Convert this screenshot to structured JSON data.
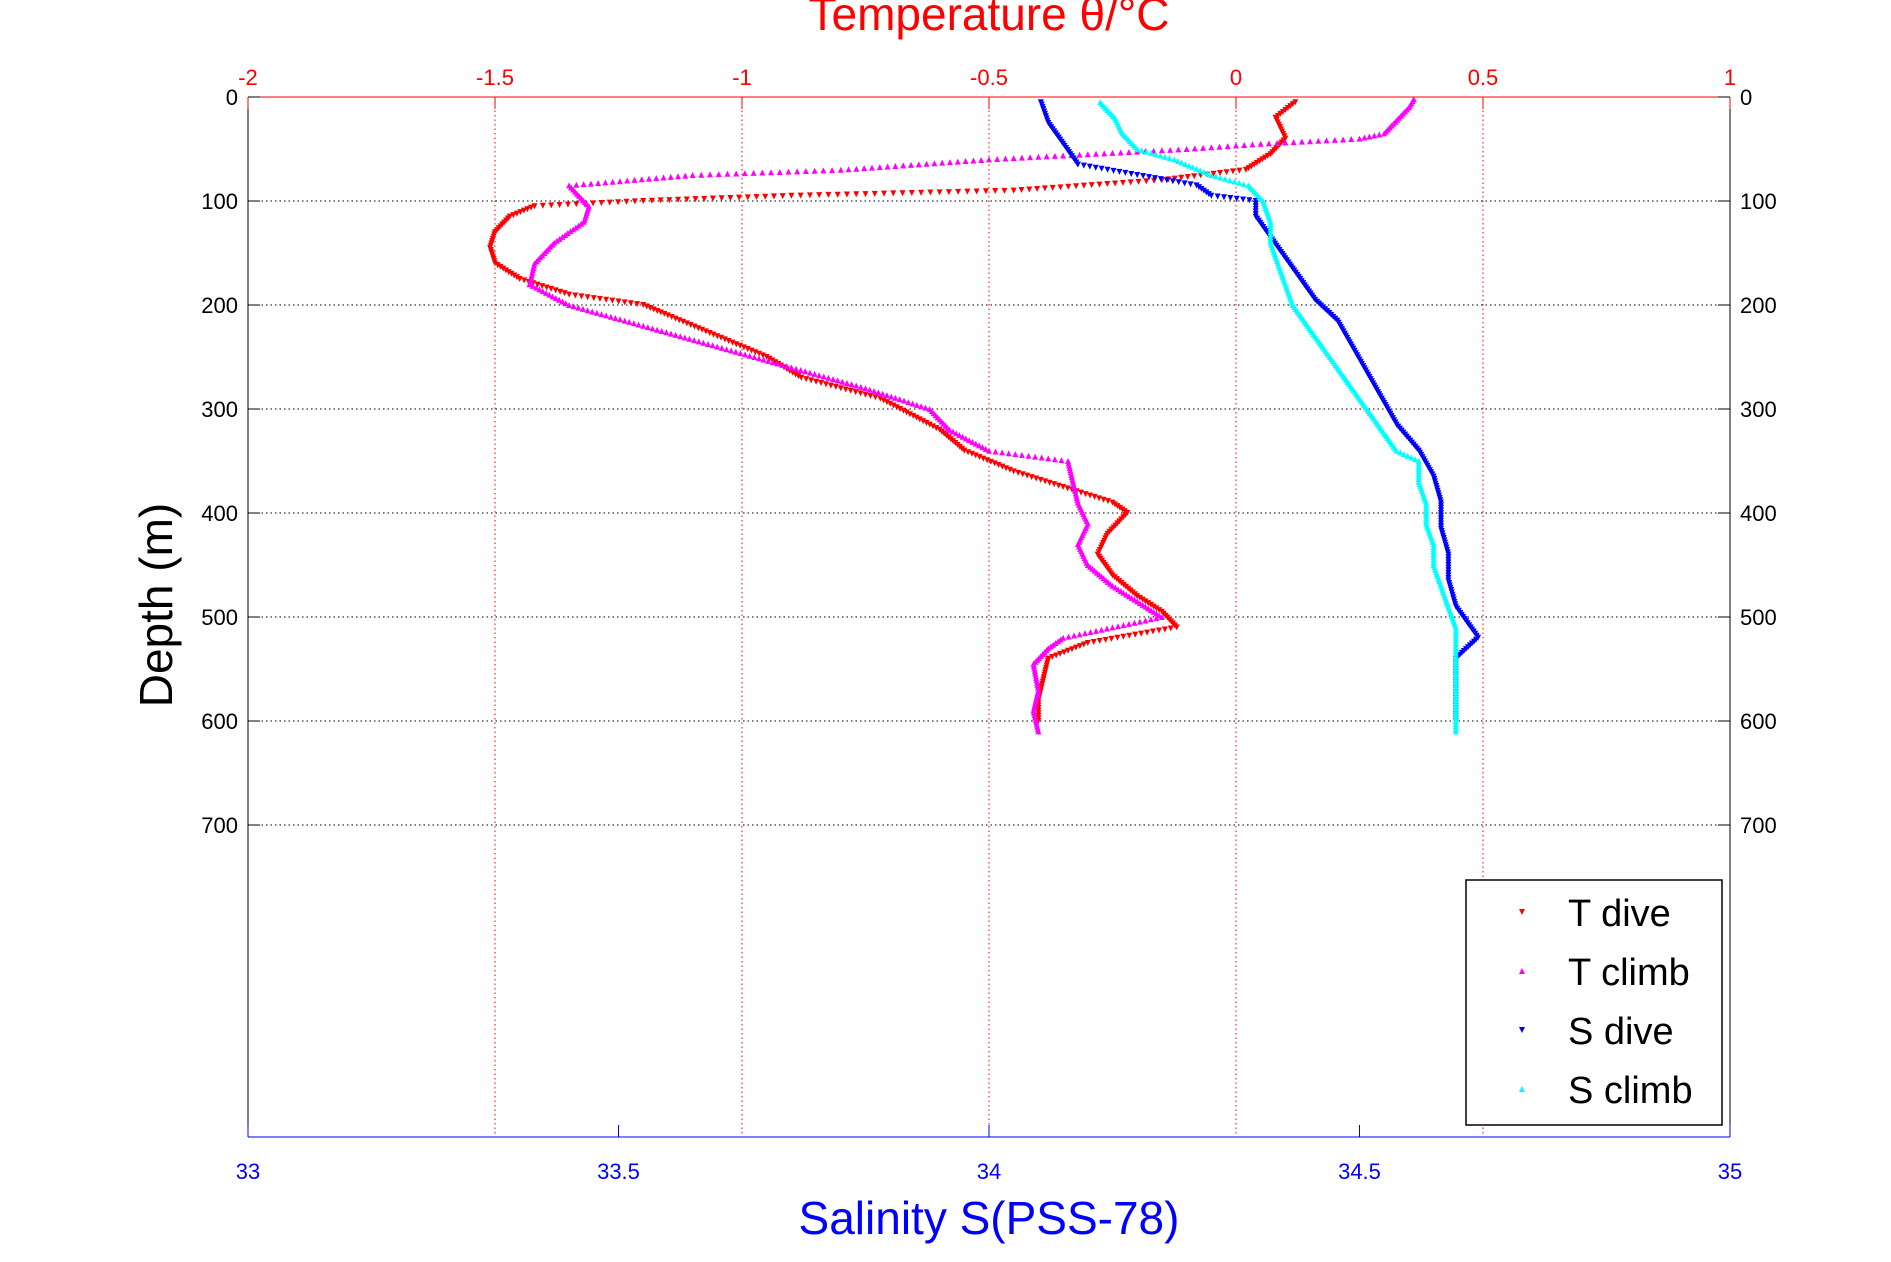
{
  "chart_data": {
    "type": "scatter",
    "title": "Temperature θ/°C",
    "xlabel": "Salinity S(PSS-78)",
    "ylabel": "Depth (m)",
    "x_top": {
      "label": "Temperature θ/°C",
      "lim": [
        -2,
        1
      ],
      "ticks": [
        "-2",
        "-1.5",
        "-1",
        "-0.5",
        "0",
        "0.5",
        "1"
      ],
      "color": "#ff0000"
    },
    "x_bottom": {
      "label": "Salinity S(PSS-78)",
      "lim": [
        33,
        35
      ],
      "ticks": [
        "33",
        "33.5",
        "34",
        "34.5",
        "35"
      ],
      "color": "#0000ff"
    },
    "y": {
      "lim": [
        0,
        1000
      ],
      "reversed": true,
      "ticks": [
        "0",
        "100",
        "200",
        "300",
        "400",
        "500",
        "600",
        "700"
      ]
    },
    "grid": true,
    "legend_position": "bottom-right",
    "series": [
      {
        "name": "T dive",
        "axis": "temperature",
        "color": "#ff0000",
        "marker": "triangle-down",
        "points": [
          [
            0.12,
            5
          ],
          [
            0.08,
            20
          ],
          [
            0.1,
            40
          ],
          [
            0.07,
            55
          ],
          [
            0.02,
            70
          ],
          [
            -0.15,
            80
          ],
          [
            -0.45,
            90
          ],
          [
            -0.9,
            95
          ],
          [
            -1.2,
            100
          ],
          [
            -1.42,
            105
          ],
          [
            -1.47,
            115
          ],
          [
            -1.5,
            130
          ],
          [
            -1.51,
            145
          ],
          [
            -1.5,
            160
          ],
          [
            -1.45,
            175
          ],
          [
            -1.35,
            190
          ],
          [
            -1.2,
            200
          ],
          [
            -1.15,
            210
          ],
          [
            -1.05,
            230
          ],
          [
            -0.95,
            250
          ],
          [
            -0.88,
            270
          ],
          [
            -0.72,
            290
          ],
          [
            -0.68,
            300
          ],
          [
            -0.6,
            320
          ],
          [
            -0.55,
            340
          ],
          [
            -0.45,
            360
          ],
          [
            -0.35,
            375
          ],
          [
            -0.25,
            390
          ],
          [
            -0.22,
            400
          ],
          [
            -0.26,
            420
          ],
          [
            -0.28,
            440
          ],
          [
            -0.25,
            460
          ],
          [
            -0.2,
            480
          ],
          [
            -0.15,
            495
          ],
          [
            -0.12,
            510
          ],
          [
            -0.18,
            515
          ],
          [
            -0.3,
            525
          ],
          [
            -0.38,
            540
          ],
          [
            -0.39,
            560
          ],
          [
            -0.4,
            580
          ],
          [
            -0.4,
            600
          ]
        ]
      },
      {
        "name": "T climb",
        "axis": "temperature",
        "color": "#ff00ff",
        "marker": "triangle-up",
        "points": [
          [
            -0.4,
            610
          ],
          [
            -0.41,
            590
          ],
          [
            -0.4,
            570
          ],
          [
            -0.41,
            545
          ],
          [
            -0.38,
            530
          ],
          [
            -0.35,
            520
          ],
          [
            -0.15,
            500
          ],
          [
            -0.2,
            485
          ],
          [
            -0.25,
            470
          ],
          [
            -0.3,
            450
          ],
          [
            -0.32,
            430
          ],
          [
            -0.3,
            410
          ],
          [
            -0.32,
            390
          ],
          [
            -0.33,
            370
          ],
          [
            -0.34,
            350
          ],
          [
            -0.5,
            340
          ],
          [
            -0.58,
            320
          ],
          [
            -0.62,
            300
          ],
          [
            -0.75,
            280
          ],
          [
            -0.9,
            260
          ],
          [
            -1.05,
            240
          ],
          [
            -1.2,
            220
          ],
          [
            -1.35,
            200
          ],
          [
            -1.43,
            180
          ],
          [
            -1.42,
            160
          ],
          [
            -1.38,
            140
          ],
          [
            -1.32,
            120
          ],
          [
            -1.31,
            105
          ],
          [
            -1.35,
            85
          ],
          [
            -1.1,
            75
          ],
          [
            -0.8,
            70
          ],
          [
            -0.5,
            60
          ],
          [
            -0.3,
            55
          ],
          [
            -0.1,
            50
          ],
          [
            0.05,
            45
          ],
          [
            0.25,
            40
          ],
          [
            0.3,
            35
          ],
          [
            0.33,
            20
          ],
          [
            0.35,
            10
          ],
          [
            0.36,
            2
          ]
        ]
      },
      {
        "name": "S dive",
        "axis": "salinity",
        "color": "#0000ff",
        "marker": "triangle-down",
        "points": [
          [
            34.07,
            5
          ],
          [
            34.08,
            25
          ],
          [
            34.1,
            45
          ],
          [
            34.12,
            65
          ],
          [
            34.2,
            75
          ],
          [
            34.28,
            85
          ],
          [
            34.3,
            95
          ],
          [
            34.36,
            100
          ],
          [
            34.36,
            115
          ],
          [
            34.38,
            135
          ],
          [
            34.4,
            155
          ],
          [
            34.42,
            175
          ],
          [
            34.44,
            195
          ],
          [
            34.47,
            215
          ],
          [
            34.49,
            240
          ],
          [
            34.51,
            265
          ],
          [
            34.53,
            290
          ],
          [
            34.55,
            315
          ],
          [
            34.58,
            340
          ],
          [
            34.6,
            365
          ],
          [
            34.61,
            390
          ],
          [
            34.61,
            415
          ],
          [
            34.62,
            440
          ],
          [
            34.62,
            465
          ],
          [
            34.63,
            490
          ],
          [
            34.66,
            520
          ],
          [
            34.63,
            540
          ],
          [
            34.63,
            560
          ],
          [
            34.63,
            580
          ],
          [
            34.63,
            600
          ]
        ]
      },
      {
        "name": "S climb",
        "axis": "salinity",
        "color": "#00ffff",
        "marker": "triangle-up",
        "points": [
          [
            34.63,
            610
          ],
          [
            34.63,
            590
          ],
          [
            34.63,
            570
          ],
          [
            34.63,
            550
          ],
          [
            34.63,
            530
          ],
          [
            34.63,
            510
          ],
          [
            34.62,
            490
          ],
          [
            34.61,
            470
          ],
          [
            34.6,
            450
          ],
          [
            34.6,
            430
          ],
          [
            34.59,
            410
          ],
          [
            34.59,
            390
          ],
          [
            34.58,
            370
          ],
          [
            34.58,
            350
          ],
          [
            34.55,
            340
          ],
          [
            34.53,
            320
          ],
          [
            34.51,
            300
          ],
          [
            34.49,
            280
          ],
          [
            34.47,
            260
          ],
          [
            34.45,
            240
          ],
          [
            34.43,
            220
          ],
          [
            34.41,
            200
          ],
          [
            34.4,
            180
          ],
          [
            34.39,
            160
          ],
          [
            34.38,
            140
          ],
          [
            34.38,
            120
          ],
          [
            34.37,
            100
          ],
          [
            34.35,
            85
          ],
          [
            34.3,
            75
          ],
          [
            34.25,
            60
          ],
          [
            34.2,
            50
          ],
          [
            34.18,
            35
          ],
          [
            34.17,
            20
          ],
          [
            34.15,
            5
          ]
        ]
      }
    ]
  }
}
